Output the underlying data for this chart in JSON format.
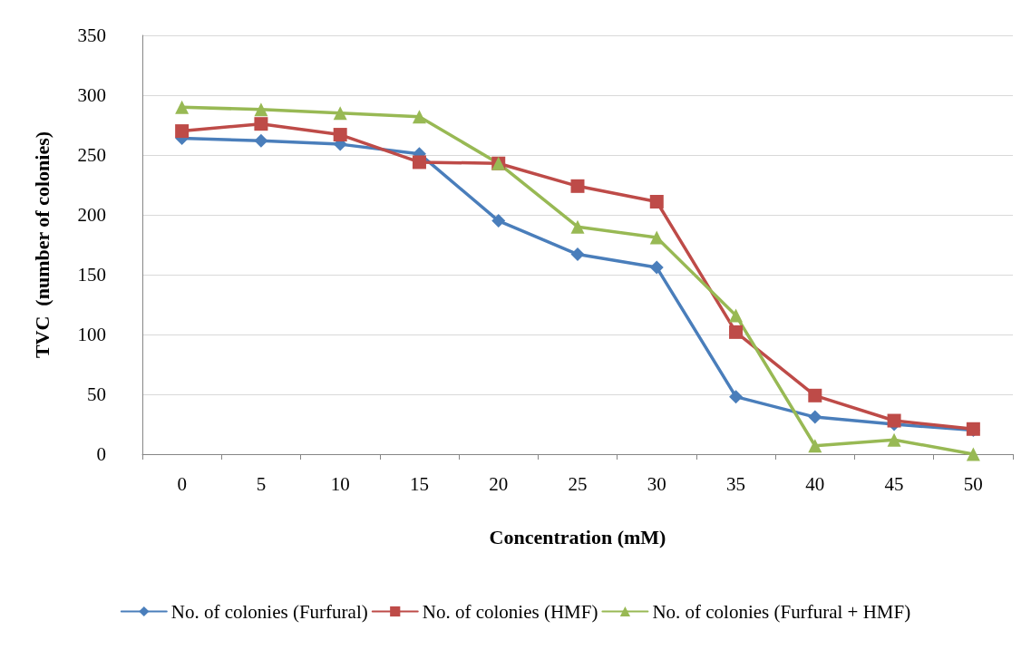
{
  "chart_data": {
    "type": "line",
    "xlabel": "Concentration (mM)",
    "ylabel": "TVC  (number of colonies)",
    "categories": [
      "0",
      "5",
      "10",
      "15",
      "20",
      "25",
      "30",
      "35",
      "40",
      "45",
      "50"
    ],
    "ylim": [
      0,
      350
    ],
    "yticks": [
      0,
      50,
      100,
      150,
      200,
      250,
      300,
      350
    ],
    "grid": "y",
    "legend": "bottom",
    "line_style": "solid",
    "series": [
      {
        "name": "No. of colonies (Furfural)",
        "color": "#4a7ebb",
        "marker": "diamond",
        "values": [
          264,
          262,
          259,
          251,
          195,
          167,
          156,
          48,
          31,
          25,
          20
        ]
      },
      {
        "name": "No. of colonies (HMF)",
        "color": "#be4b48",
        "marker": "square",
        "values": [
          270,
          276,
          267,
          244,
          243,
          224,
          211,
          102,
          49,
          28,
          21
        ]
      },
      {
        "name": "No. of colonies (Furfural + HMF)",
        "color": "#98b954",
        "marker": "triangle",
        "values": [
          290,
          288,
          285,
          282,
          243,
          190,
          181,
          116,
          7,
          12,
          0
        ]
      }
    ]
  }
}
